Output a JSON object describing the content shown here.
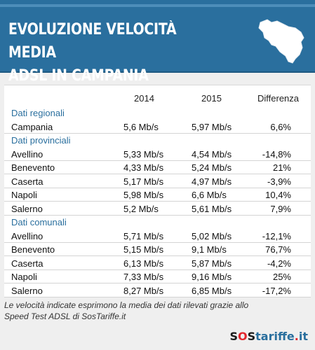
{
  "header": {
    "title_line1": "EVOLUZIONE VELOCITÀ MEDIA",
    "title_line2": "ADSL IN CAMPANIA",
    "map_icon": "campania-map-icon",
    "colors": {
      "header_bg": "#2a6f9e",
      "section_label": "#2a6f9e"
    }
  },
  "table": {
    "columns": [
      "2014",
      "2015",
      "Differenza"
    ],
    "sections": [
      {
        "label": "Dati regionali",
        "rows": [
          {
            "name": "Campania",
            "y2014": "5,6 Mb/s",
            "y2015": "5,97 Mb/s",
            "diff": "6,6%"
          }
        ]
      },
      {
        "label": "Dati provinciali",
        "rows": [
          {
            "name": "Avellino",
            "y2014": "5,33 Mb/s",
            "y2015": "4,54 Mb/s",
            "diff": "-14,8%"
          },
          {
            "name": "Benevento",
            "y2014": "4,33 Mb/s",
            "y2015": "5,24 Mb/s",
            "diff": "21%"
          },
          {
            "name": "Caserta",
            "y2014": "5,17 Mb/s",
            "y2015": "4,97 Mb/s",
            "diff": "-3,9%"
          },
          {
            "name": "Napoli",
            "y2014": "5,98 Mb/s",
            "y2015": "6,6 Mb/s",
            "diff": "10,4%"
          },
          {
            "name": "Salerno",
            "y2014": "5,2 Mb/s",
            "y2015": "5,61 Mb/s",
            "diff": "7,9%"
          }
        ]
      },
      {
        "label": "Dati comunali",
        "rows": [
          {
            "name": "Avellino",
            "y2014": "5,71 Mb/s",
            "y2015": "5,02 Mb/s",
            "diff": "-12,1%"
          },
          {
            "name": "Benevento",
            "y2014": "5,15 Mb/s",
            "y2015": "9,1 Mb/s",
            "diff": "76,7%"
          },
          {
            "name": "Caserta",
            "y2014": "6,13 Mb/s",
            "y2015": "5,87 Mb/s",
            "diff": "-4,2%"
          },
          {
            "name": "Napoli",
            "y2014": "7,33 Mb/s",
            "y2015": "9,16 Mb/s",
            "diff": "25%"
          },
          {
            "name": "Salerno",
            "y2014": "8,27 Mb/s",
            "y2015": "6,85 Mb/s",
            "diff": "-17,2%"
          }
        ]
      }
    ]
  },
  "footnote": {
    "line1": "Le velocità indicate esprimono la media dei dati rilevati grazie allo",
    "line2": "Speed Test ADSL di SosTariffe.it"
  },
  "logo": {
    "text": "SOStariffe.it",
    "icon": "sostariffe-logo"
  }
}
